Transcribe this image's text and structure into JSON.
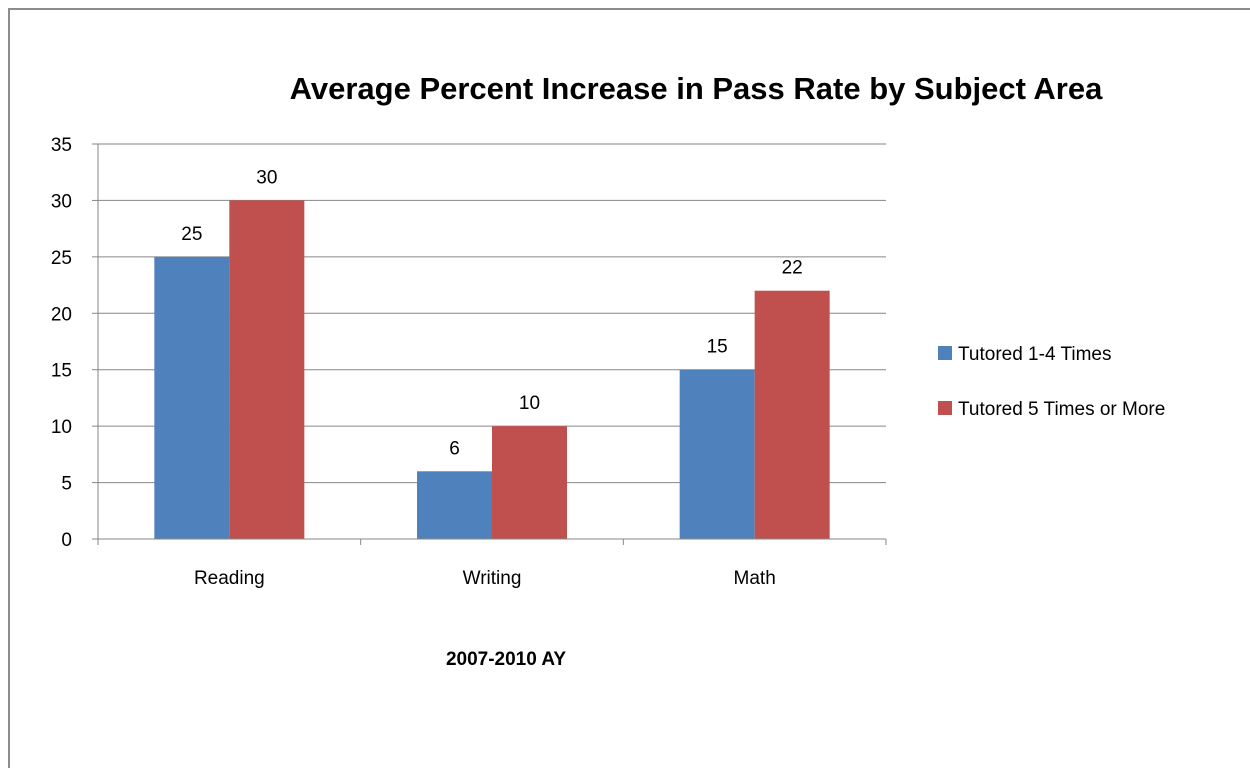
{
  "chart_data": {
    "type": "bar",
    "title": "Average Percent Increase in Pass Rate by Subject Area",
    "xlabel": "2007-2010 AY",
    "ylabel": "",
    "categories": [
      "Reading",
      "Writing",
      "Math"
    ],
    "series": [
      {
        "name": "Tutored 1-4 Times",
        "values": [
          25,
          6,
          15
        ],
        "color": "#4f81bd"
      },
      {
        "name": "Tutored 5 Times or More",
        "values": [
          30,
          10,
          22
        ],
        "color": "#c0504d"
      }
    ],
    "ylim": [
      0,
      35
    ],
    "yticks": [
      "0",
      "5",
      "10",
      "15",
      "20",
      "25",
      "30",
      "35"
    ],
    "grid": true,
    "legend_position": "right",
    "data_labels": true
  }
}
